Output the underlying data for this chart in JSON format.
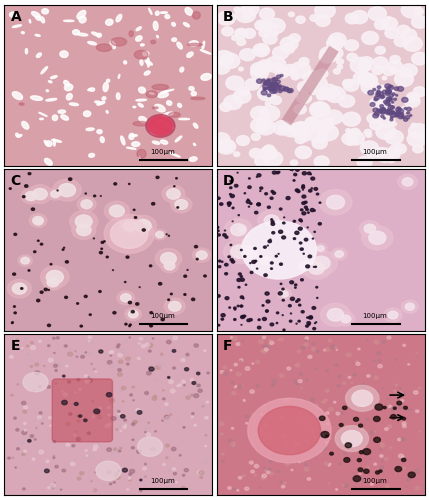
{
  "figure_width": 4.29,
  "figure_height": 5.0,
  "dpi": 100,
  "panels": [
    "A",
    "B",
    "C",
    "D",
    "E",
    "F"
  ],
  "nrows": 3,
  "ncols": 2,
  "bg_color": "#ffffff",
  "border_color": "#000000",
  "label_fontsize": 10,
  "label_color": "#000000",
  "scale_bar_text": "100μm",
  "panel_bg_colors": {
    "A": "#e8a0a8",
    "B": "#e8b0c0",
    "C": "#d090a0",
    "D": "#dca0b8",
    "E": "#e0a8b8",
    "F": "#d88098"
  },
  "panel_detail_colors": {
    "A": {
      "base": "#e8a0a8",
      "mid": "#c87080",
      "light": "#f0c8d0",
      "white": "#ffffff",
      "dark": "#804060"
    },
    "B": {
      "base": "#e8b0c0",
      "mid": "#c88098",
      "light": "#f0d0dc",
      "white": "#f8f0f4",
      "dark": "#806070"
    },
    "C": {
      "base": "#d090a0",
      "mid": "#b06878",
      "light": "#e0b0c0",
      "white": "#f0e8ec",
      "dark": "#302020"
    },
    "D": {
      "base": "#dca0b8",
      "mid": "#b87898",
      "light": "#ecc0d4",
      "white": "#f4ecf0",
      "dark": "#282028"
    },
    "E": {
      "base": "#e0a8b8",
      "mid": "#c08090",
      "light": "#ecc8d4",
      "white": "#f8f0f4",
      "dark": "#281820"
    },
    "F": {
      "base": "#d88098",
      "mid": "#b05878",
      "light": "#e8a8c0",
      "white": "#f0e0e8",
      "dark": "#200818"
    }
  }
}
